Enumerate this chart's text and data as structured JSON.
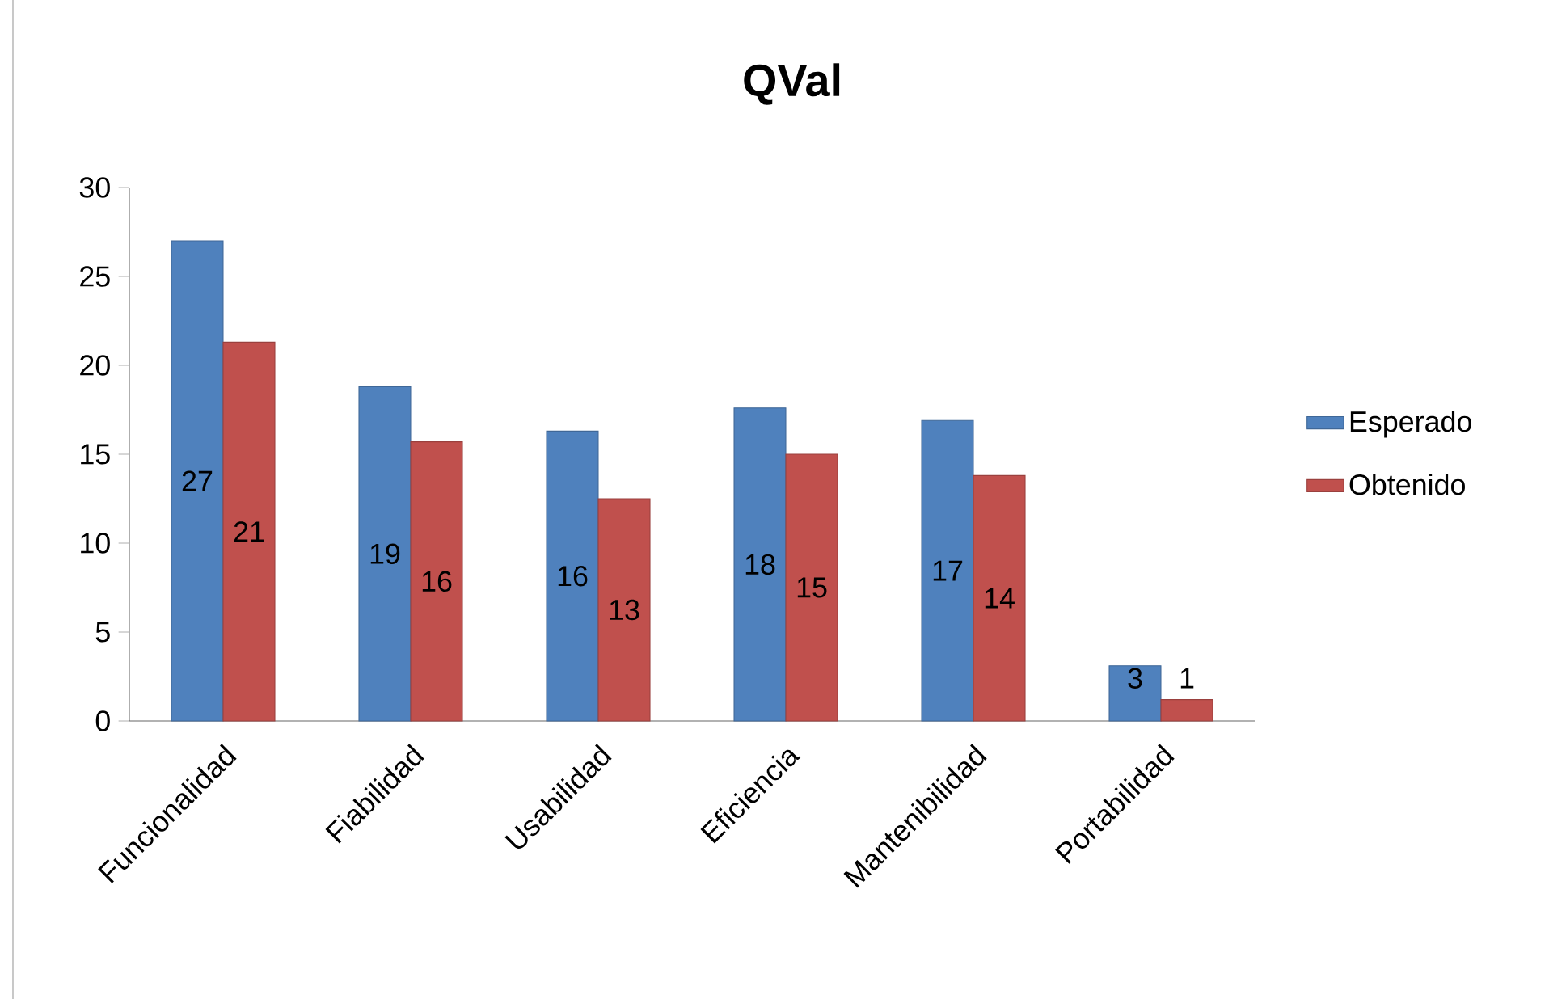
{
  "chart_data": {
    "type": "bar",
    "title": "QVal",
    "categories": [
      "Funcionalidad",
      "Fiabilidad",
      "Usabilidad",
      "Eficiencia",
      "Mantenibilidad",
      "Portabilidad"
    ],
    "series": [
      {
        "name": "Esperado",
        "color": "#4f81bd",
        "values": [
          27.0,
          18.8,
          16.3,
          17.6,
          16.9,
          3.1
        ],
        "value_labels": [
          "27",
          "19",
          "16",
          "18",
          "17",
          "3"
        ]
      },
      {
        "name": "Obtenido",
        "color": "#c0504d",
        "values": [
          21.3,
          15.7,
          12.5,
          15.0,
          13.8,
          1.2
        ],
        "value_labels": [
          "21",
          "16",
          "13",
          "15",
          "14",
          "1"
        ]
      }
    ],
    "ylim": [
      0,
      30
    ],
    "yticks": [
      0,
      5,
      10,
      15,
      20,
      25,
      30
    ],
    "grid": false,
    "legend": "right"
  }
}
